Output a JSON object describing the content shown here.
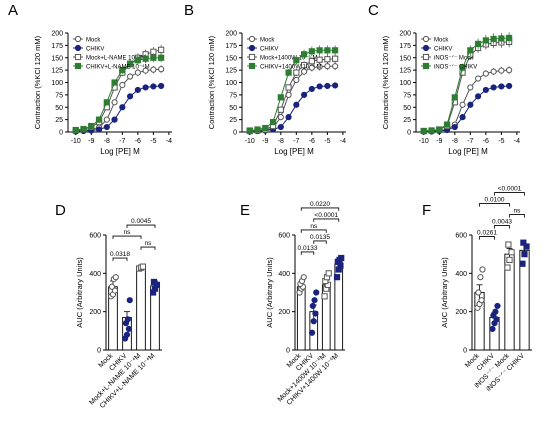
{
  "chart_data": [
    {
      "panel": "A",
      "type": "line",
      "xlabel": "Log [PE] M",
      "ylabel": "Contraction (%KCl 120 mM)",
      "xlim": [
        -10.5,
        -3.8
      ],
      "ylim": [
        0,
        200
      ],
      "xticks": [
        -10,
        -9,
        -8,
        -7,
        -6,
        -5,
        -4
      ],
      "yticks": [
        0,
        25,
        50,
        75,
        100,
        125,
        150,
        175,
        200
      ],
      "x": [
        -10,
        -9.5,
        -9,
        -8.5,
        -8,
        -7.5,
        -7,
        -6.5,
        -6,
        -5.5,
        -5,
        -4.5
      ],
      "legend_placement": "top-left",
      "series": [
        {
          "name": "Mock",
          "marker": "open-circle",
          "values": [
            2,
            3,
            5,
            9,
            25,
            60,
            95,
            112,
            120,
            124,
            126,
            127
          ]
        },
        {
          "name": "CHIKV",
          "marker": "filled-circle",
          "values": [
            1,
            2,
            3,
            5,
            10,
            25,
            50,
            72,
            85,
            90,
            92,
            93
          ]
        },
        {
          "name": "Mock+L-NAME 10⁻⁴M",
          "marker": "open-square",
          "values": [
            3,
            5,
            10,
            20,
            50,
            90,
            120,
            137,
            150,
            157,
            162,
            166
          ]
        },
        {
          "name": "CHIKV+L-NAME 10⁻⁴M",
          "marker": "filled-square",
          "values": [
            4,
            6,
            12,
            25,
            60,
            100,
            125,
            138,
            145,
            148,
            150,
            150
          ]
        }
      ]
    },
    {
      "panel": "B",
      "type": "line",
      "xlabel": "Log [PE] M",
      "ylabel": "Contraction (%KCl 120 mM)",
      "xlim": [
        -10.5,
        -3.8
      ],
      "ylim": [
        0,
        200
      ],
      "xticks": [
        -10,
        -9,
        -8,
        -7,
        -6,
        -5,
        -4
      ],
      "yticks": [
        0,
        25,
        50,
        75,
        100,
        125,
        150,
        175,
        200
      ],
      "x": [
        -10,
        -9.5,
        -9,
        -8.5,
        -8,
        -7.5,
        -7,
        -6.5,
        -6,
        -5.5,
        -5,
        -4.5
      ],
      "legend_placement": "top-left",
      "series": [
        {
          "name": "Mock",
          "marker": "open-circle",
          "values": [
            1,
            2,
            3,
            8,
            30,
            75,
            105,
            122,
            130,
            132,
            133,
            133
          ]
        },
        {
          "name": "CHIKV",
          "marker": "filled-circle",
          "values": [
            1,
            2,
            3,
            5,
            10,
            30,
            55,
            75,
            87,
            92,
            93,
            94
          ]
        },
        {
          "name": "Mock+1400W 10⁻⁶ M",
          "marker": "open-square",
          "values": [
            2,
            3,
            5,
            12,
            45,
            90,
            120,
            135,
            143,
            146,
            147,
            148
          ]
        },
        {
          "name": "CHIKV+1400W 10⁻⁶ M",
          "marker": "filled-square",
          "values": [
            3,
            5,
            8,
            20,
            70,
            120,
            145,
            157,
            163,
            165,
            165,
            165
          ]
        }
      ]
    },
    {
      "panel": "C",
      "type": "line",
      "xlabel": "Log [PE] M",
      "ylabel": "Contraction (%KCl 120 mM)",
      "xlim": [
        -10.5,
        -3.8
      ],
      "ylim": [
        0,
        200
      ],
      "xticks": [
        -10,
        -9,
        -8,
        -7,
        -6,
        -5,
        -4
      ],
      "yticks": [
        0,
        25,
        50,
        75,
        100,
        125,
        150,
        175,
        200
      ],
      "x": [
        -10,
        -9.5,
        -9,
        -8.5,
        -8,
        -7.5,
        -7,
        -6.5,
        -6,
        -5.5,
        -5,
        -4.5
      ],
      "legend_placement": "top-left",
      "series": [
        {
          "name": "Mock",
          "marker": "open-circle",
          "values": [
            1,
            2,
            3,
            5,
            15,
            55,
            90,
            108,
            118,
            122,
            124,
            125
          ]
        },
        {
          "name": "CHIKV",
          "marker": "filled-circle",
          "values": [
            1,
            1,
            2,
            4,
            10,
            30,
            55,
            72,
            85,
            90,
            92,
            93
          ]
        },
        {
          "name": "iNOS⁻ᐟ⁻ Mock",
          "marker": "open-square",
          "values": [
            2,
            3,
            5,
            12,
            60,
            120,
            155,
            170,
            177,
            180,
            181,
            182
          ]
        },
        {
          "name": "iNOS⁻ᐟ⁻ CHIKV",
          "marker": "filled-square",
          "values": [
            2,
            3,
            5,
            15,
            70,
            130,
            165,
            178,
            185,
            188,
            189,
            190
          ]
        }
      ]
    },
    {
      "panel": "D",
      "type": "bar",
      "ylabel": "AUC (Arbitrary Units)",
      "ylim": [
        0,
        600
      ],
      "yticks": [
        0,
        200,
        400,
        600
      ],
      "categories": [
        "Mock",
        "CHIKV",
        "Mock+L-NAME 10⁻⁴M",
        "CHIKV+L-NAME 10⁻⁴M"
      ],
      "values": [
        330,
        170,
        430,
        335
      ],
      "errors": [
        30,
        30,
        8,
        25
      ],
      "points": [
        [
          280,
          290,
          310,
          330,
          370,
          380
        ],
        [
          60,
          80,
          110,
          140,
          160,
          260
        ],
        [
          425,
          430,
          435
        ],
        [
          300,
          320,
          340,
          355
        ]
      ],
      "annotations": [
        {
          "groups": [
            0,
            1
          ],
          "text": "0.0318"
        },
        {
          "groups": [
            0,
            2
          ],
          "text": "ns"
        },
        {
          "groups": [
            1,
            3
          ],
          "text": "0.0045"
        },
        {
          "groups": [
            2,
            3
          ],
          "text": "ns"
        }
      ]
    },
    {
      "panel": "E",
      "type": "bar",
      "ylabel": "AUC (Arbitrary Units)",
      "ylim": [
        0,
        600
      ],
      "yticks": [
        0,
        200,
        400,
        600
      ],
      "categories": [
        "Mock",
        "CHIKV",
        "Mock+1400W 10⁻⁶M",
        "CHIKV+1400W 10⁻⁶M"
      ],
      "values": [
        330,
        200,
        340,
        450
      ],
      "errors": [
        20,
        35,
        25,
        20
      ],
      "points": [
        [
          300,
          320,
          330,
          345,
          360,
          380
        ],
        [
          90,
          150,
          190,
          230,
          260,
          300
        ],
        [
          280,
          320,
          340,
          360,
          380,
          400
        ],
        [
          380,
          420,
          440,
          460,
          470,
          480
        ]
      ],
      "annotations": [
        {
          "groups": [
            0,
            1
          ],
          "text": "0.0133"
        },
        {
          "groups": [
            0,
            2
          ],
          "text": "ns"
        },
        {
          "groups": [
            1,
            2
          ],
          "text": "0.0135"
        },
        {
          "groups": [
            1,
            3
          ],
          "text": "<0.0001"
        },
        {
          "groups": [
            0,
            3
          ],
          "text": "0.0220"
        }
      ]
    },
    {
      "panel": "F",
      "type": "bar",
      "ylabel": "AUC (Arbitrary Units)",
      "ylim": [
        0,
        600
      ],
      "yticks": [
        0,
        200,
        400,
        600
      ],
      "categories": [
        "Mock",
        "CHIKV",
        "iNOS⁻ᐟ⁻ Mock",
        "iNOS⁻ᐟ⁻ CHIKV"
      ],
      "values": [
        300,
        170,
        500,
        520
      ],
      "errors": [
        40,
        25,
        30,
        30
      ],
      "points": [
        [
          220,
          240,
          260,
          300,
          380,
          420
        ],
        [
          110,
          140,
          160,
          180,
          200,
          230
        ],
        [
          430,
          470,
          510,
          550
        ],
        [
          450,
          500,
          540,
          560
        ]
      ],
      "annotations": [
        {
          "groups": [
            0,
            1
          ],
          "text": "0.0261"
        },
        {
          "groups": [
            1,
            2
          ],
          "text": "0.0043"
        },
        {
          "groups": [
            0,
            2
          ],
          "text": "0.0100"
        },
        {
          "groups": [
            1,
            3
          ],
          "text": "<0.0001"
        },
        {
          "groups": [
            2,
            3
          ],
          "text": "ns"
        }
      ]
    }
  ]
}
